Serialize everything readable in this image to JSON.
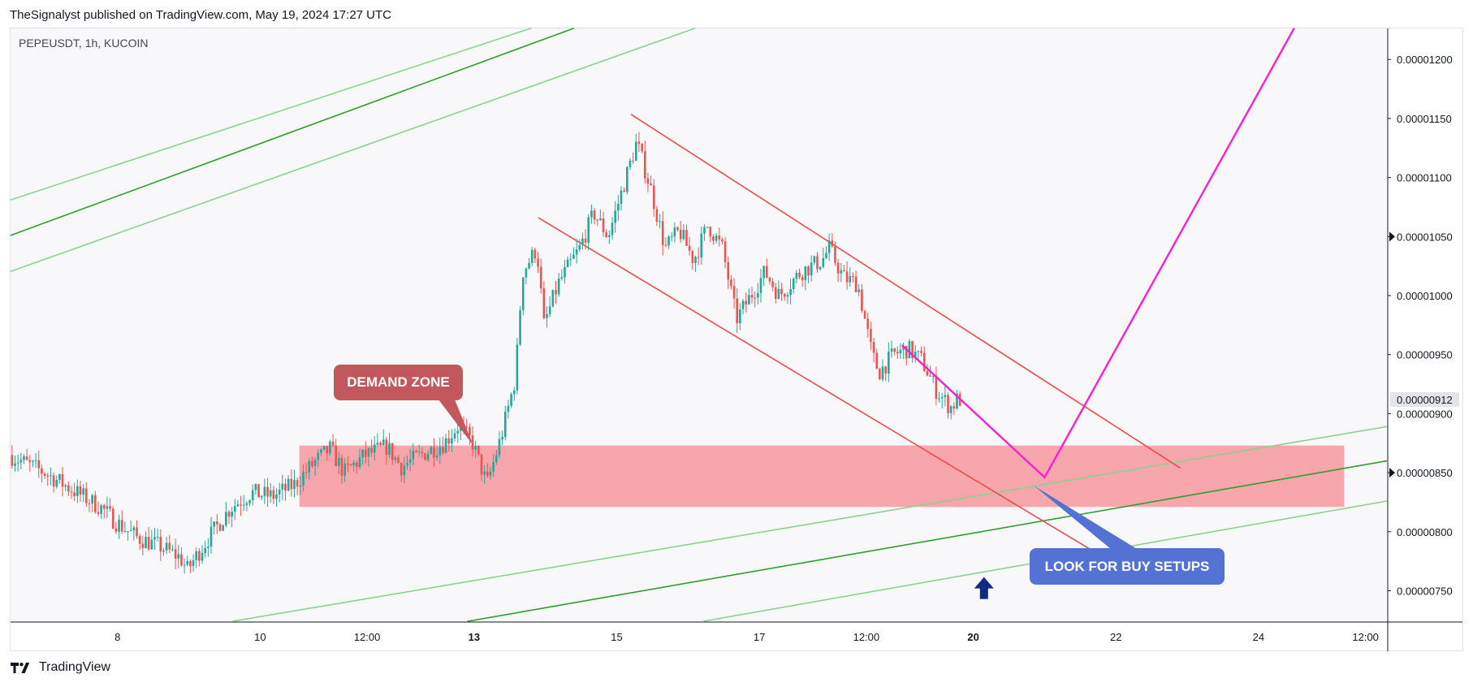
{
  "header": {
    "published": "TheSignalyst published on TradingView.com, May 19, 2024 17:27 UTC"
  },
  "footer": {
    "brand": "TradingView"
  },
  "chart_data": {
    "type": "candlestick",
    "symbol_label": "PEPEUSDT, 1h, KUCOIN",
    "price_axis": {
      "ticks": [
        {
          "label": "0.00001200",
          "value": 1.2e-05
        },
        {
          "label": "0.00001150",
          "value": 1.15e-05
        },
        {
          "label": "0.00001100",
          "value": 1.1e-05
        },
        {
          "label": "0.00001050",
          "value": 1.05e-05
        },
        {
          "label": "0.00001000",
          "value": 1e-05
        },
        {
          "label": "0.00000950",
          "value": 9.5e-06
        },
        {
          "label": "0.00000900",
          "value": 9e-06
        },
        {
          "label": "0.00000850",
          "value": 8.5e-06
        },
        {
          "label": "0.00000800",
          "value": 8e-06
        },
        {
          "label": "0.00000750",
          "value": 7.5e-06
        }
      ],
      "current_price_label": "0.00000912",
      "current_price": 9.12e-06,
      "ylim": [
        7.235e-06,
        1.2263e-05
      ]
    },
    "time_axis": {
      "unit": "day_of_may_2024",
      "xlim": [
        6.5,
        25.8
      ],
      "ticks": [
        {
          "label": "8",
          "day": 8.0,
          "bold": false
        },
        {
          "label": "10",
          "day": 10.0,
          "bold": false
        },
        {
          "label": "12:00",
          "day": 11.5,
          "bold": false
        },
        {
          "label": "13",
          "day": 13.0,
          "bold": true
        },
        {
          "label": "15",
          "day": 15.0,
          "bold": false
        },
        {
          "label": "17",
          "day": 17.0,
          "bold": false
        },
        {
          "label": "12:00",
          "day": 18.5,
          "bold": false
        },
        {
          "label": "20",
          "day": 20.0,
          "bold": true
        },
        {
          "label": "22",
          "day": 22.0,
          "bold": false
        },
        {
          "label": "24",
          "day": 24.0,
          "bold": false
        },
        {
          "label": "12:00",
          "day": 25.5,
          "bold": false
        }
      ]
    },
    "colors": {
      "up": "#26a69a",
      "down": "#ef5350",
      "zone": "#f7a1a6",
      "channel": "#f04b4b",
      "projection": "#ff1fd1",
      "trend_dark": "#2e9e2e",
      "trend_light": "#8fd18f",
      "demand_label_bg": "#c2575e",
      "buy_label_bg": "#5472d3",
      "arrow": "#102a83"
    },
    "price_path": [
      [
        6.5,
        8.65e-06
      ],
      [
        7.0,
        8.5e-06
      ],
      [
        7.4,
        8.35e-06
      ],
      [
        7.8,
        8.2e-06
      ],
      [
        8.0,
        8.08e-06
      ],
      [
        8.3,
        7.95e-06
      ],
      [
        8.6,
        7.88e-06
      ],
      [
        8.9,
        7.78e-06
      ],
      [
        9.0,
        7.68e-06
      ],
      [
        9.3,
        7.95e-06
      ],
      [
        9.6,
        8.2e-06
      ],
      [
        9.9,
        8.33e-06
      ],
      [
        10.2,
        8.3e-06
      ],
      [
        10.5,
        8.4e-06
      ],
      [
        10.8,
        8.6e-06
      ],
      [
        11.0,
        8.7e-06
      ],
      [
        11.2,
        8.5e-06
      ],
      [
        11.5,
        8.65e-06
      ],
      [
        11.8,
        8.72e-06
      ],
      [
        12.0,
        8.55e-06
      ],
      [
        12.3,
        8.66e-06
      ],
      [
        12.6,
        8.75e-06
      ],
      [
        12.8,
        8.9e-06
      ],
      [
        13.0,
        8.75e-06
      ],
      [
        13.2,
        8.4e-06
      ],
      [
        13.4,
        8.8e-06
      ],
      [
        13.6,
        9.3e-06
      ],
      [
        13.7,
        1.02e-05
      ],
      [
        13.9,
        1.04e-05
      ],
      [
        14.0,
        9.75e-06
      ],
      [
        14.2,
        1.01e-05
      ],
      [
        14.5,
        1.04e-05
      ],
      [
        14.7,
        1.07e-05
      ],
      [
        14.9,
        1.05e-05
      ],
      [
        15.1,
        1.09e-05
      ],
      [
        15.3,
        1.13e-05
      ],
      [
        15.5,
        1.09e-05
      ],
      [
        15.7,
        1.04e-05
      ],
      [
        15.9,
        1.055e-05
      ],
      [
        16.1,
        1.03e-05
      ],
      [
        16.3,
        1.06e-05
      ],
      [
        16.5,
        1.04e-05
      ],
      [
        16.7,
        9.8e-06
      ],
      [
        16.9,
        1e-05
      ],
      [
        17.1,
        1.02e-05
      ],
      [
        17.3,
        1e-05
      ],
      [
        17.6,
        1.02e-05
      ],
      [
        17.9,
        1.03e-05
      ],
      [
        18.0,
        1.04e-05
      ],
      [
        18.2,
        1.015e-05
      ],
      [
        18.4,
        1.01e-05
      ],
      [
        18.6,
        9.5e-06
      ],
      [
        18.7,
        9.35e-06
      ],
      [
        18.9,
        9.5e-06
      ],
      [
        19.1,
        9.55e-06
      ],
      [
        19.3,
        9.45e-06
      ],
      [
        19.5,
        9.2e-06
      ],
      [
        19.7,
        9.05e-06
      ],
      [
        19.8,
        9.12e-06
      ]
    ],
    "demand_zone": {
      "day_from": 10.55,
      "day_to": 25.2,
      "price_top": 8.73e-06,
      "price_bottom": 8.21e-06
    },
    "channel_lines": [
      {
        "from": {
          "day": 15.2,
          "price": 1.1535e-05
        },
        "to": {
          "day": 22.9,
          "price": 8.54e-06
        }
      },
      {
        "from": {
          "day": 13.9,
          "price": 1.066e-05
        },
        "to": {
          "day": 22.0,
          "price": 7.72e-06
        }
      }
    ],
    "trend_lines_dark": [
      {
        "from": {
          "day": 6.5,
          "price": 1.051e-05
        },
        "to": {
          "day": 14.4,
          "price": 1.2265e-05
        }
      },
      {
        "from": {
          "day": 12.9,
          "price": 7.24e-06
        },
        "to": {
          "day": 25.8,
          "price": 8.6e-06
        }
      }
    ],
    "trend_lines_light": [
      {
        "from": {
          "day": 6.5,
          "price": 1.081e-05
        },
        "to": {
          "day": 13.8,
          "price": 1.2265e-05
        }
      },
      {
        "from": {
          "day": 6.5,
          "price": 1.0205e-05
        },
        "to": {
          "day": 16.1,
          "price": 1.2265e-05
        }
      },
      {
        "from": {
          "day": 9.6,
          "price": 7.24e-06
        },
        "to": {
          "day": 25.8,
          "price": 8.89e-06
        }
      },
      {
        "from": {
          "day": 16.2,
          "price": 7.24e-06
        },
        "to": {
          "day": 25.8,
          "price": 8.26e-06
        }
      }
    ],
    "projection_path": [
      {
        "day": 19.0,
        "price": 9.58e-06
      },
      {
        "day": 21.0,
        "price": 8.46e-06
      },
      {
        "day": 24.5,
        "price": 1.2265e-05
      }
    ],
    "annotations": {
      "demand_zone_label": "DEMAND ZONE",
      "buy_label": "LOOK FOR BUY SETUPS"
    },
    "arrow_up": {
      "day": 20.15,
      "price": 7.52e-06
    }
  }
}
